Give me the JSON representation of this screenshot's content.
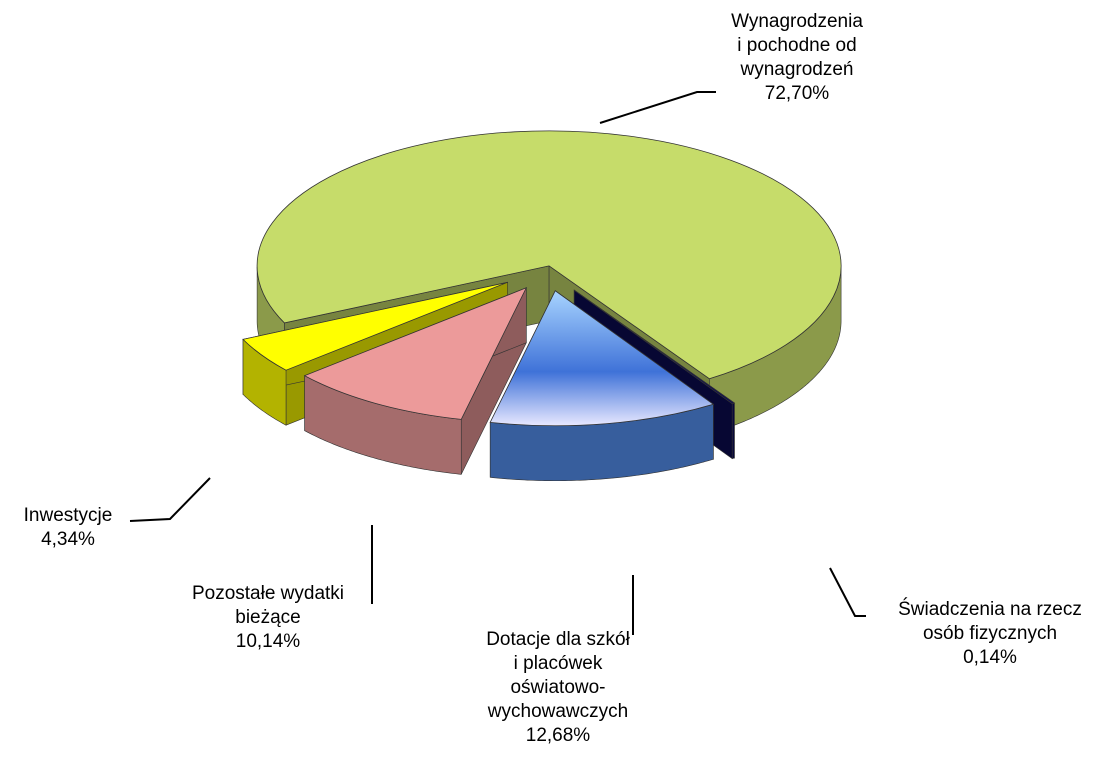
{
  "chart_data": {
    "type": "pie",
    "categories": [
      [
        "Wynagrodzenia",
        "i pochodne od",
        "wynagrodzeń"
      ],
      [
        "Świadczenia na rzecz",
        "osób fizycznych"
      ],
      [
        "Dotacje dla szkół",
        "i placówek",
        "oświatowo-",
        "wychowawczych"
      ],
      [
        "Pozostałe wydatki",
        "bieżące"
      ],
      [
        "Inwestycje"
      ]
    ],
    "values": [
      72.7,
      0.14,
      12.68,
      10.14,
      4.34
    ],
    "value_labels": [
      "72,70%",
      "0,14%",
      "12,68%",
      "10,14%",
      "4,34%"
    ],
    "colors": [
      "#c6dc6a",
      "#0b0b55",
      "#4f86e0",
      "#ec9a9a",
      "#ffff00"
    ]
  }
}
